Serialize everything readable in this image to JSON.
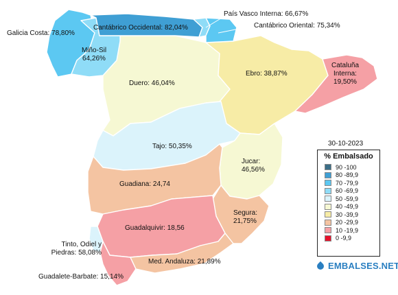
{
  "date": "30-10-2023",
  "legend": {
    "title": "% Embalsado",
    "ranges": [
      {
        "label": "90 -100",
        "color": "#3b6e87"
      },
      {
        "label": "80 -89,9",
        "color": "#3f9fd4"
      },
      {
        "label": "70 -79,9",
        "color": "#5cc8f2"
      },
      {
        "label": "60 -69,9",
        "color": "#8fdcf7"
      },
      {
        "label": "50 -59,9",
        "color": "#dbf3fb"
      },
      {
        "label": "40 -49,9",
        "color": "#f6f8d3"
      },
      {
        "label": "30 -39,9",
        "color": "#f7eca6"
      },
      {
        "label": "20 -29,9",
        "color": "#f4c4a2"
      },
      {
        "label": "10 -19,9",
        "color": "#f5a0a5"
      },
      {
        "label": "0 -9,9",
        "color": "#e6122c"
      }
    ]
  },
  "basins": {
    "galicia_costa": {
      "label": "Galicia Costa: 78,80%",
      "value": 78.8
    },
    "mino_sil": {
      "label": "Miño-Sil 64,26%",
      "value": 64.26
    },
    "cantabrico_occidental": {
      "label": "Cantábrico Occidental: 82,04%",
      "value": 82.04
    },
    "pais_vasco_interna": {
      "label": "País Vasco Interna: 66,67%",
      "value": 66.67
    },
    "cantabrico_oriental": {
      "label": "Cantábrico Oriental: 75,34%",
      "value": 75.34
    },
    "duero": {
      "label": "Duero: 46,04%",
      "value": 46.04
    },
    "ebro": {
      "label": "Ebro: 38,87%",
      "value": 38.87
    },
    "cataluna_interna": {
      "label": "Cataluña Interna: 19,50%",
      "value": 19.5
    },
    "tajo": {
      "label": "Tajo: 50,35%",
      "value": 50.35
    },
    "jucar": {
      "label": "Jucar: 46,56%",
      "value": 46.56
    },
    "guadiana": {
      "label": "Guadiana: 24,74",
      "value": 24.74
    },
    "segura": {
      "label": "Segura: 21,75%",
      "value": 21.75
    },
    "guadalquivir": {
      "label": "Guadalquivir: 18,56",
      "value": 18.56
    },
    "tinto_odiel_piedras": {
      "label": "Tinto, Odiel y Piedras: 58,08%",
      "value": 58.08
    },
    "med_andaluza": {
      "label": "Med. Andaluza: 21,89%",
      "value": 21.89
    },
    "guadalete_barbate": {
      "label": "Guadalete-Barbate: 15,14%",
      "value": 15.14
    }
  },
  "brand": {
    "name": "EMBALSES.NET",
    "icon": "water-drop-icon"
  }
}
